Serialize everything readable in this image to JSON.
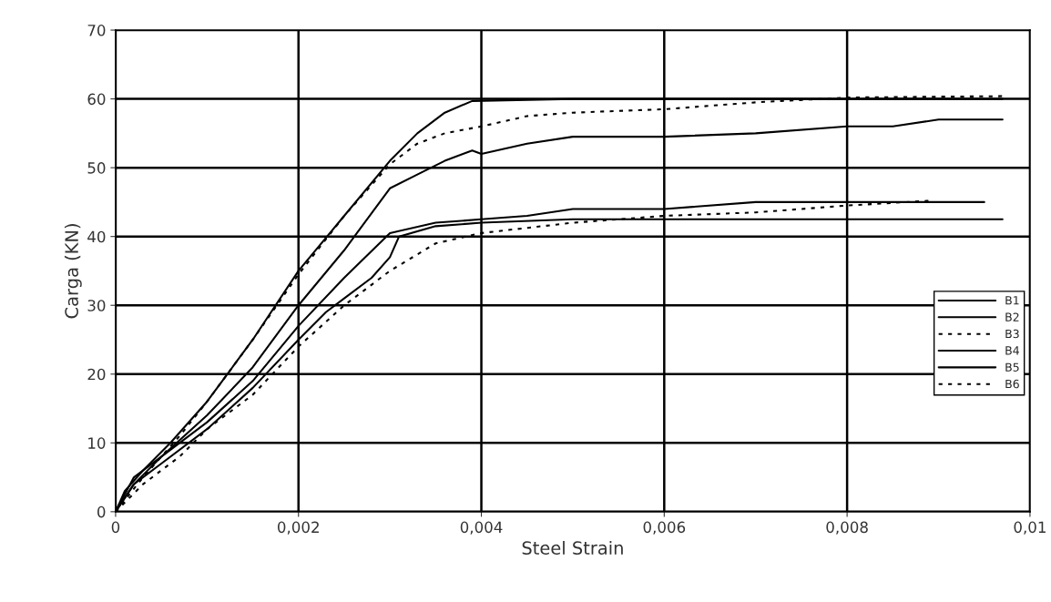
{
  "chart_data": {
    "type": "line",
    "xlabel": "Steel Strain",
    "ylabel": "Carga (KN)",
    "xlim": [
      0,
      0.01
    ],
    "ylim": [
      0,
      70
    ],
    "xticks": [
      0,
      {
        "value": 0.002,
        "label": "0,002"
      },
      {
        "value": 0.004,
        "label": "0,004"
      },
      {
        "value": 0.006,
        "label": "0,006"
      },
      {
        "value": 0.008,
        "label": "0,008"
      },
      {
        "value": 0.01,
        "label": "0,01"
      }
    ],
    "yticks": [
      0,
      10,
      20,
      30,
      40,
      50,
      60,
      70
    ],
    "grid": true,
    "legend": "right",
    "marker": "none",
    "series": [
      {
        "name": "B1",
        "color": "#000000",
        "line_style": "solid",
        "x": [
          0,
          0.0002,
          0.0005,
          0.001,
          0.0015,
          0.002,
          0.0025,
          0.003,
          0.0033,
          0.0036,
          0.0039,
          0.004,
          0.0045,
          0.005,
          0.006,
          0.007,
          0.008,
          0.0085,
          0.009,
          0.0097
        ],
        "values": [
          0,
          4,
          8,
          14,
          21,
          30,
          38,
          47,
          49,
          51,
          52.5,
          52,
          53.5,
          54.5,
          54.5,
          55,
          56,
          56,
          57,
          57
        ]
      },
      {
        "name": "B2",
        "color": "#000000",
        "line_style": "solid",
        "x": [
          0,
          0.0001,
          0.0003,
          0.0006,
          0.001,
          0.0015,
          0.002,
          0.0025,
          0.003,
          0.0033,
          0.0036,
          0.0039,
          0.005,
          0.0097
        ],
        "values": [
          0,
          3,
          6,
          10,
          16,
          25,
          35,
          43,
          51,
          55,
          58,
          59.7,
          60,
          60
        ]
      },
      {
        "name": "B3",
        "color": "#000000",
        "line_style": "dotted",
        "x": [
          0,
          0.0003,
          0.0007,
          0.001,
          0.0015,
          0.002,
          0.0025,
          0.003,
          0.0033,
          0.0036,
          0.004,
          0.0045,
          0.005,
          0.006,
          0.007,
          0.008,
          0.0097
        ],
        "values": [
          0,
          5,
          11,
          16,
          25,
          34.5,
          43,
          50.5,
          53.5,
          55,
          56,
          57.5,
          58,
          58.5,
          59.5,
          60.2,
          60.4
        ]
      },
      {
        "name": "B4",
        "color": "#000000",
        "line_style": "solid",
        "x": [
          0,
          0.0002,
          0.0006,
          0.001,
          0.0015,
          0.002,
          0.0025,
          0.003,
          0.0035,
          0.004,
          0.0045,
          0.005,
          0.006,
          0.007,
          0.0095
        ],
        "values": [
          0,
          5,
          9,
          13,
          19,
          27,
          34,
          40.5,
          42,
          42.5,
          43,
          44,
          44,
          45,
          45
        ]
      },
      {
        "name": "B5",
        "color": "#000000",
        "line_style": "solid",
        "x": [
          0,
          0.0002,
          0.0005,
          0.001,
          0.0015,
          0.002,
          0.0023,
          0.0025,
          0.0028,
          0.003,
          0.0031,
          0.0035,
          0.004,
          0.005,
          0.0097
        ],
        "values": [
          0,
          4,
          7,
          12,
          18,
          25,
          29,
          31,
          34,
          37,
          40,
          41.5,
          42,
          42.5,
          42.5
        ]
      },
      {
        "name": "B6",
        "color": "#000000",
        "line_style": "dotted",
        "x": [
          0,
          0.0003,
          0.0007,
          0.001,
          0.0015,
          0.002,
          0.0025,
          0.003,
          0.0035,
          0.004,
          0.005,
          0.006,
          0.007,
          0.008,
          0.0089
        ],
        "values": [
          0,
          4,
          8,
          12,
          17,
          24,
          30,
          35,
          39,
          40.5,
          42,
          43,
          43.5,
          44.5,
          45.2
        ]
      }
    ]
  }
}
